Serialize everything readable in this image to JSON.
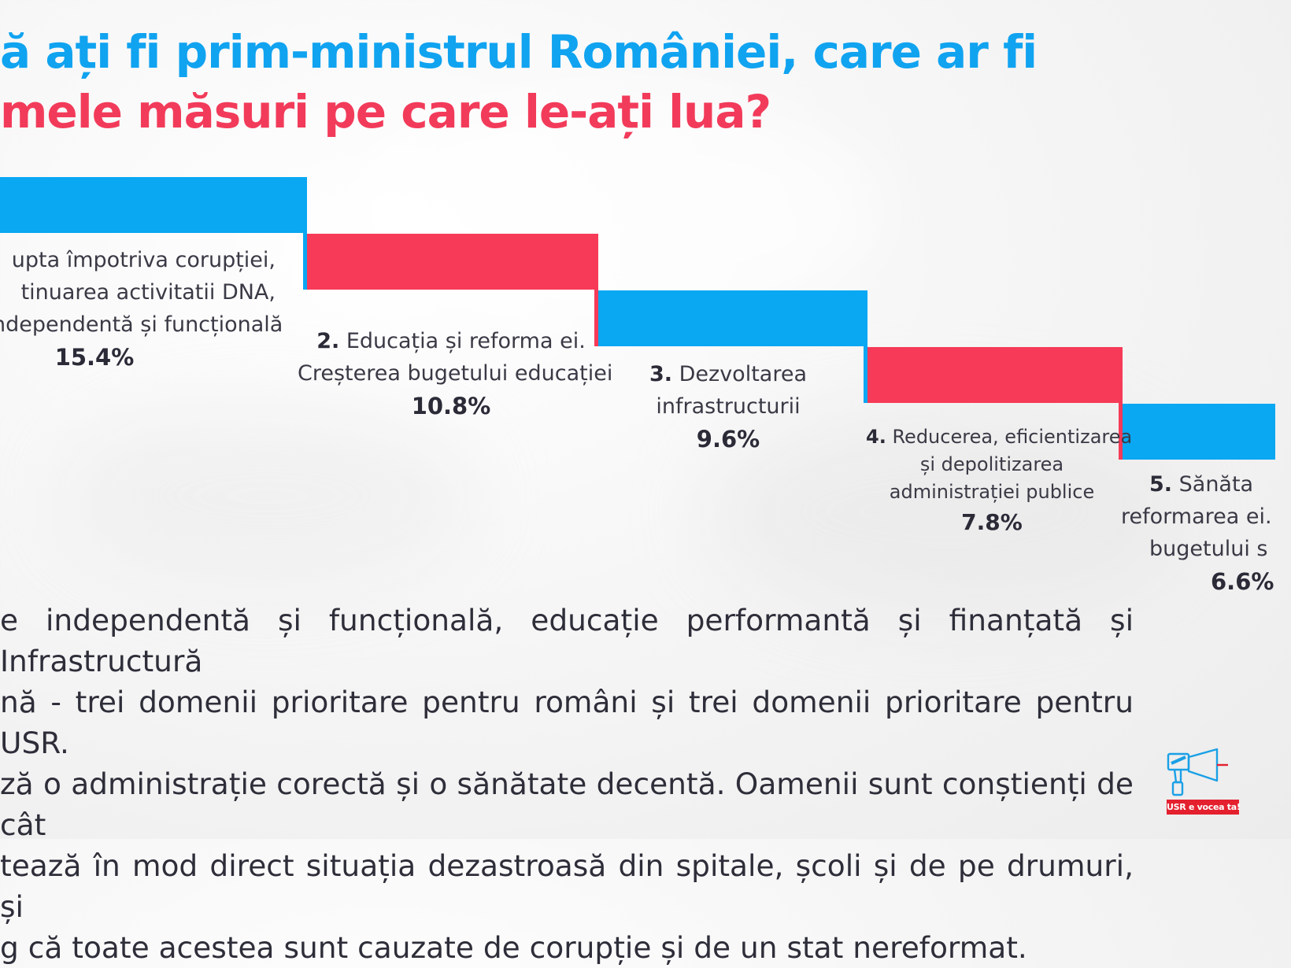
{
  "title": {
    "line1": "ă ați fi prim-ministrul României, care ar fi",
    "line2": "mele măsuri pe care le-ați lua?"
  },
  "colors": {
    "blue": "#0aa7f2",
    "red": "#f63a58"
  },
  "chart_data": {
    "type": "bar",
    "title": "ă ați fi prim-ministrul României, care ar fi mele măsuri pe care le-ați lua?",
    "categories": [
      "upta împotriva corupției, tinuarea activitatii DNA, ndependentă și funcțională",
      "Educația și reforma ei. Creșterea bugetului educației",
      "Dezvoltarea infrastructurii",
      "Reducerea, eficientizarea și depolitizarea administrației publice",
      "Sănăta reformarea ei. bugetului s"
    ],
    "values": [
      15.4,
      10.8,
      9.6,
      7.8,
      6.6
    ],
    "unit": "%",
    "style": "staircase",
    "colors": [
      "blue",
      "red",
      "blue",
      "red",
      "blue"
    ]
  },
  "items": [
    {
      "num": "",
      "lines": [
        "upta împotriva corupției,",
        "tinuarea activitatii DNA,",
        "ndependentă și funcțională"
      ],
      "pct": "15.4%"
    },
    {
      "num": "2.",
      "lines": [
        " Educația și reforma ei.",
        "Creșterea bugetului educației"
      ],
      "pct": "10.8%"
    },
    {
      "num": "3.",
      "lines": [
        " Dezvoltarea",
        "infrastructurii"
      ],
      "pct": "9.6%"
    },
    {
      "num": "4.",
      "lines": [
        " Reducerea, eficientizarea",
        "și depolitizarea",
        "administrației publice"
      ],
      "pct": "7.8%"
    },
    {
      "num": "5.",
      "lines": [
        " Sănăta",
        "reformarea ei.",
        "bugetului s"
      ],
      "pct": "6.6%"
    }
  ],
  "body": [
    "e independentă și funcțională, educație performantă și finanțată și Infrastructură",
    "nă - trei domenii prioritare pentru români și trei domenii prioritare pentru USR.",
    "ză o administrație corectă și o sănătate decentă. Oamenii sunt conștienți de cât",
    "tează în mod direct situația dezastroasă din spitale, școli și de pe drumuri, și",
    "g că toate acestea sunt cauzate de corupție și de un stat nereformat."
  ],
  "logo": {
    "badge": "USR e vocea ta!"
  }
}
